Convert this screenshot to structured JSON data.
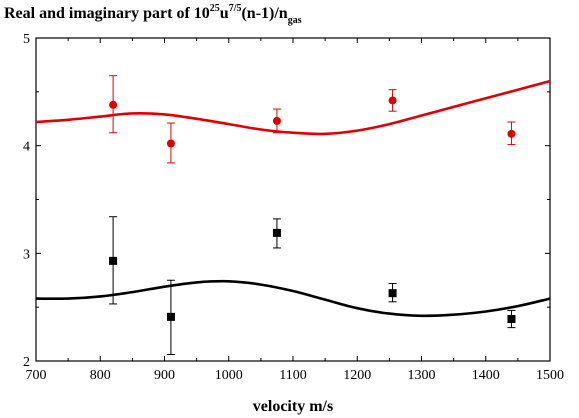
{
  "chart_data": {
    "type": "scatter",
    "title": {
      "parts": [
        {
          "text": "Real and imaginary part of 10",
          "shift": "base"
        },
        {
          "text": "25",
          "shift": "super"
        },
        {
          "text": "u",
          "shift": "base"
        },
        {
          "text": "7/5",
          "shift": "super"
        },
        {
          "text": "(n-1)/n",
          "shift": "base"
        },
        {
          "text": "gas",
          "shift": "sub"
        }
      ]
    },
    "xlabel": "velocity m/s",
    "ylabel": "",
    "xlim": [
      700,
      1500
    ],
    "ylim": [
      2,
      5
    ],
    "xticks": [
      700,
      800,
      900,
      1000,
      1100,
      1200,
      1300,
      1400,
      1500
    ],
    "yticks": [
      2,
      3,
      4,
      5
    ],
    "grid": false,
    "legend": "none",
    "series": [
      {
        "color": "#e00000",
        "marker": "circle",
        "points": [
          {
            "x": 820,
            "y": 4.38,
            "err_lo": 4.12,
            "err_hi": 4.65
          },
          {
            "x": 910,
            "y": 4.02,
            "err_lo": 3.84,
            "err_hi": 4.21
          },
          {
            "x": 1075,
            "y": 4.23,
            "err_lo": 4.12,
            "err_hi": 4.34
          },
          {
            "x": 1255,
            "y": 4.42,
            "err_lo": 4.32,
            "err_hi": 4.52
          },
          {
            "x": 1440,
            "y": 4.11,
            "err_lo": 4.01,
            "err_hi": 4.22
          }
        ],
        "curve": [
          [
            700,
            4.22
          ],
          [
            750,
            4.24
          ],
          [
            800,
            4.27
          ],
          [
            850,
            4.3
          ],
          [
            900,
            4.29
          ],
          [
            950,
            4.25
          ],
          [
            1000,
            4.2
          ],
          [
            1050,
            4.15
          ],
          [
            1100,
            4.12
          ],
          [
            1150,
            4.11
          ],
          [
            1200,
            4.14
          ],
          [
            1250,
            4.2
          ],
          [
            1300,
            4.28
          ],
          [
            1350,
            4.36
          ],
          [
            1400,
            4.44
          ],
          [
            1450,
            4.52
          ],
          [
            1500,
            4.6
          ]
        ]
      },
      {
        "color": "#000000",
        "marker": "square",
        "points": [
          {
            "x": 820,
            "y": 2.93,
            "err_lo": 2.53,
            "err_hi": 3.34
          },
          {
            "x": 910,
            "y": 2.41,
            "err_lo": 2.06,
            "err_hi": 2.75
          },
          {
            "x": 1075,
            "y": 3.19,
            "err_lo": 3.05,
            "err_hi": 3.32
          },
          {
            "x": 1255,
            "y": 2.63,
            "err_lo": 2.55,
            "err_hi": 2.72
          },
          {
            "x": 1440,
            "y": 2.39,
            "err_lo": 2.31,
            "err_hi": 2.47
          }
        ],
        "curve": [
          [
            700,
            2.58
          ],
          [
            750,
            2.58
          ],
          [
            800,
            2.6
          ],
          [
            850,
            2.64
          ],
          [
            900,
            2.69
          ],
          [
            950,
            2.73
          ],
          [
            1000,
            2.74
          ],
          [
            1050,
            2.71
          ],
          [
            1100,
            2.65
          ],
          [
            1150,
            2.57
          ],
          [
            1200,
            2.49
          ],
          [
            1250,
            2.44
          ],
          [
            1300,
            2.42
          ],
          [
            1350,
            2.43
          ],
          [
            1400,
            2.46
          ],
          [
            1450,
            2.51
          ],
          [
            1500,
            2.58
          ]
        ]
      }
    ]
  }
}
